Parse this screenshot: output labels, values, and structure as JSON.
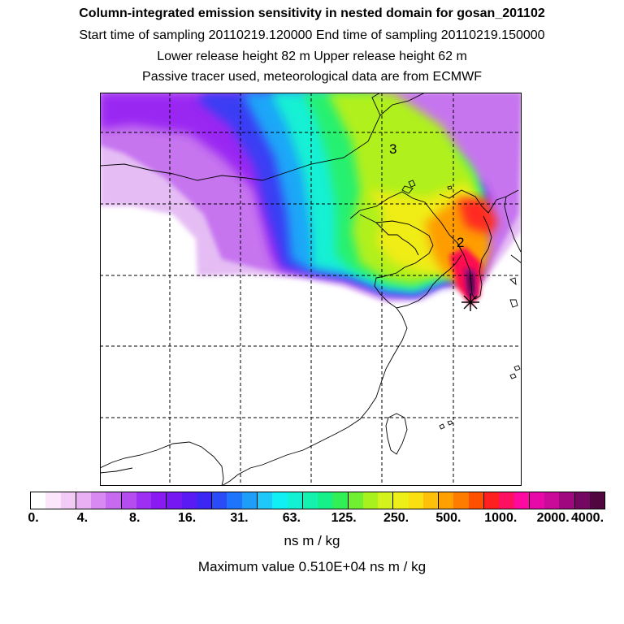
{
  "header": {
    "title": "Column-integrated emission sensitivity in nested domain for gosan_201102",
    "line2": "Start time of sampling 20110219.120000     End time of sampling 20110219.150000",
    "line3": "Lower release height   82 m          Upper release height   62 m",
    "line4": "Passive tracer used, meteorological data are from ECMWF"
  },
  "map": {
    "site_labels": [
      "3",
      "2"
    ],
    "release_marker": "asterisk-icon"
  },
  "colorbar": {
    "tick_labels": [
      "0.",
      "4.",
      "8.",
      "16.",
      "31.",
      "63.",
      "125.",
      "250.",
      "500.",
      "1000.",
      "2000.",
      "4000."
    ],
    "units": "ns m / kg",
    "colors": [
      "#ffffff",
      "#fbe6fb",
      "#f2ccf7",
      "#e9b0f4",
      "#d98af2",
      "#c86af0",
      "#b44cf0",
      "#9d2ef2",
      "#8a1af2",
      "#7618f2",
      "#5a1af4",
      "#3b26f4",
      "#2a4cf8",
      "#1e74fa",
      "#1e9ef8",
      "#1ec8f8",
      "#10f0f4",
      "#12f2d2",
      "#14f2b0",
      "#16f088",
      "#30f056",
      "#70f030",
      "#a8f01e",
      "#d4f21e",
      "#ecf018",
      "#fae010",
      "#fec008",
      "#fea000",
      "#fe7c00",
      "#fe5000",
      "#fe2020",
      "#fe1060",
      "#fe0aa0",
      "#e80aa8",
      "#ca0a98",
      "#a00880",
      "#740860",
      "#50063e"
    ]
  },
  "max_value_text": "Maximum value  0.510E+04 ns m / kg"
}
